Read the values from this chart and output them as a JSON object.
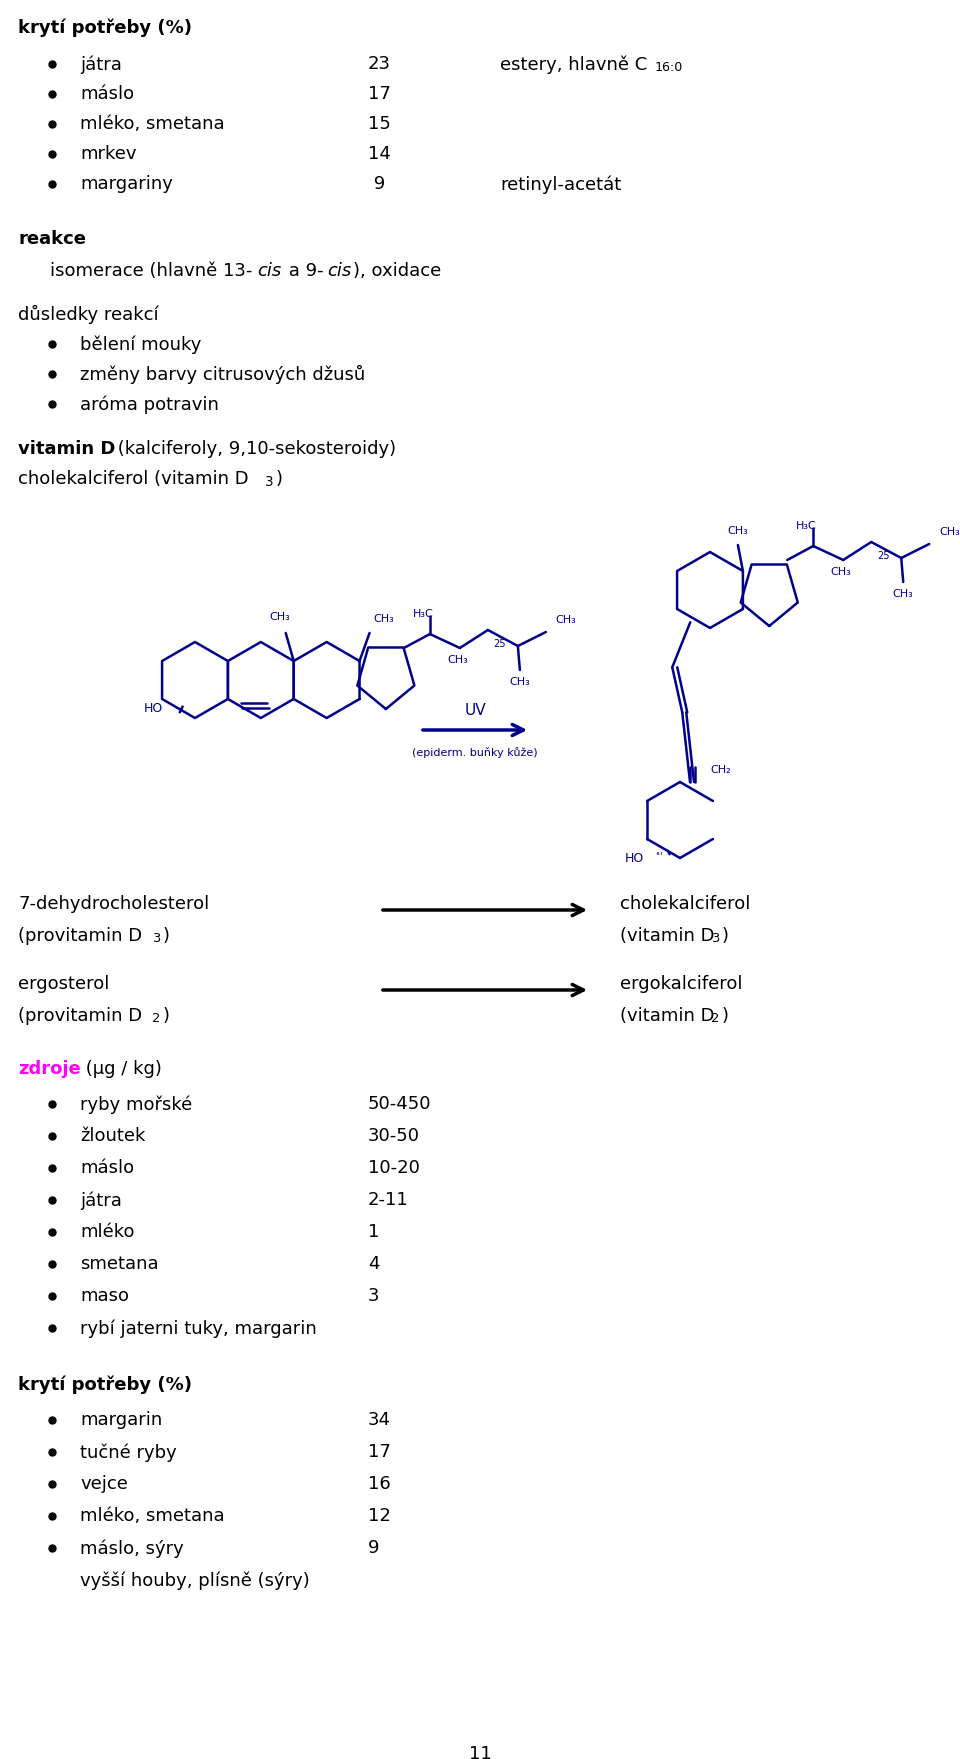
{
  "bg_color": "#ffffff",
  "text_color": "#000000",
  "blue_color": "#00008B",
  "magenta_color": "#FF00FF",
  "fig_width": 9.6,
  "fig_height": 17.59,
  "dpi": 100,
  "fs": 13,
  "fs_small": 9,
  "fs_sub": 9,
  "zdroje_items": [
    {
      "text": "ryby mořské",
      "value": "50-450"
    },
    {
      "text": "žloutek",
      "value": "30-50"
    },
    {
      "text": "máslo",
      "value": "10-20"
    },
    {
      "text": "játra",
      "value": "2-11"
    },
    {
      "text": "mléko",
      "value": "1"
    },
    {
      "text": "smetana",
      "value": "4"
    },
    {
      "text": "maso",
      "value": "3"
    },
    {
      "text": "rybí jaterni tuky, margarin",
      "value": ""
    }
  ],
  "kryt2_items": [
    {
      "text": "margarin",
      "value": "34",
      "bullet": true
    },
    {
      "text": "tučné ryby",
      "value": "17",
      "bullet": true
    },
    {
      "text": "vejce",
      "value": "16",
      "bullet": true
    },
    {
      "text": "mléko, smetana",
      "value": "12",
      "bullet": true
    },
    {
      "text": "máslo, sýry",
      "value": "9",
      "bullet": true
    },
    {
      "text": "vyšší houby, plísně (sýry)",
      "value": "",
      "bullet": false
    }
  ]
}
